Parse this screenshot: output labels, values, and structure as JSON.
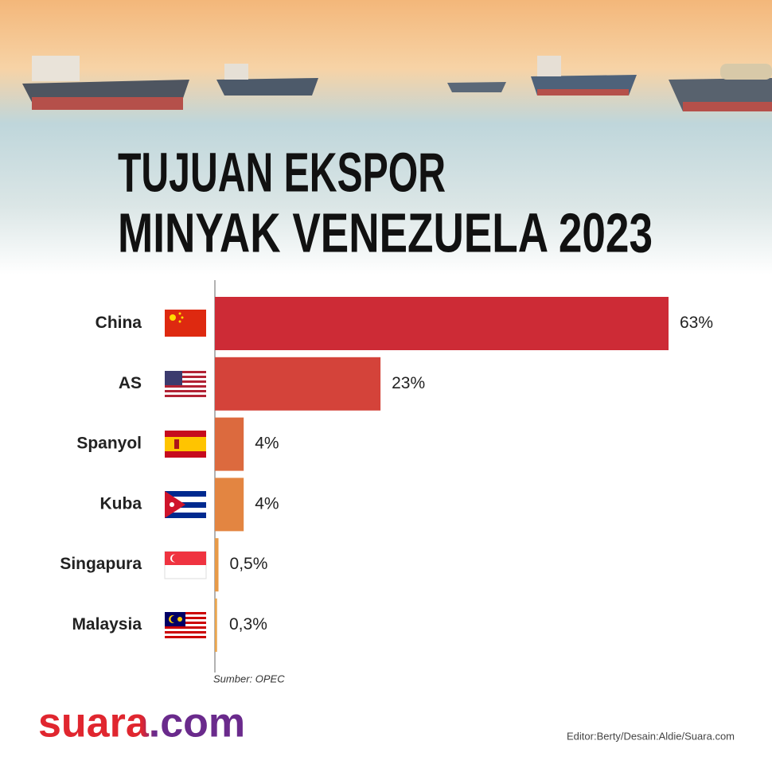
{
  "chart_data": {
    "type": "bar",
    "orientation": "horizontal",
    "title": [
      "TUJUAN EKSPOR",
      "MINYAK VENEZUELA 2023"
    ],
    "categories": [
      "China",
      "AS",
      "Spanyol",
      "Kuba",
      "Singapura",
      "Malaysia"
    ],
    "values": [
      63,
      23,
      4,
      4,
      0.5,
      0.3
    ],
    "value_labels": [
      "63%",
      "23%",
      "4%",
      "4%",
      "0,5%",
      "0,3%"
    ],
    "colors": [
      "#cd2b36",
      "#d4433a",
      "#dc6a3e",
      "#e38541",
      "#e89a48",
      "#eaa64e"
    ],
    "source": "Sumber: OPEC",
    "logo": "suara.com",
    "credits": "Editor:Berty/Desain:Aldie/Suara.com"
  }
}
